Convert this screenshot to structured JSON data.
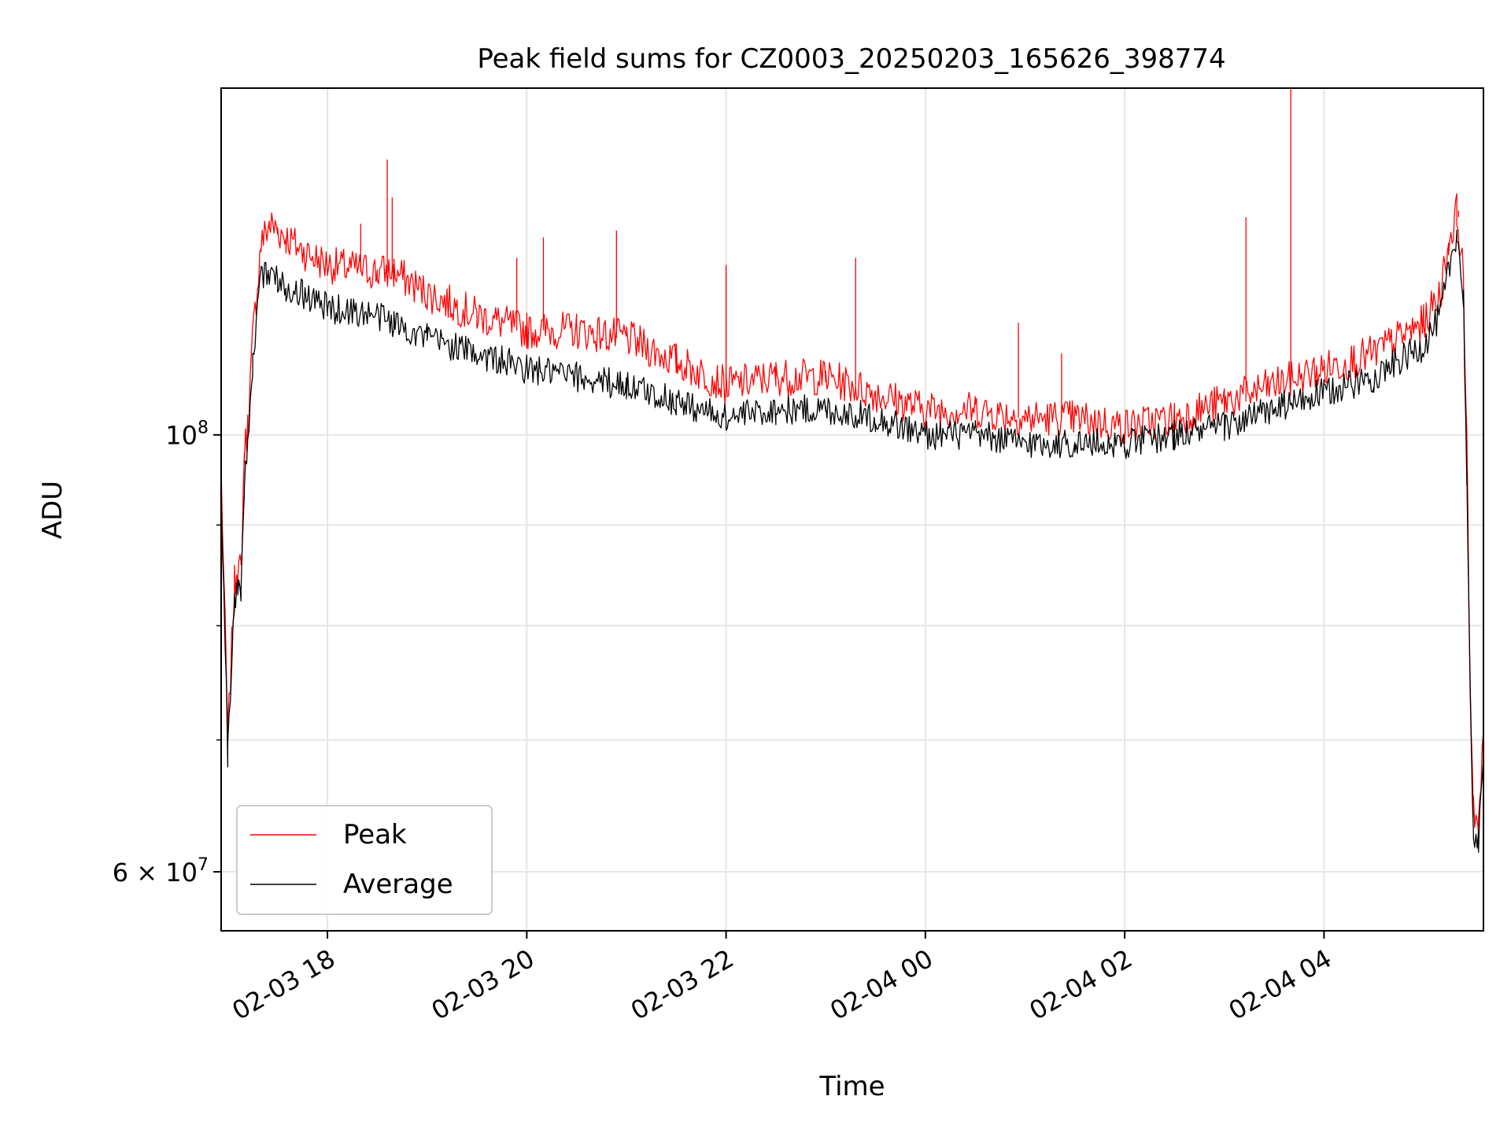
{
  "chart_data": {
    "type": "line",
    "title": "Peak field sums for CZ0003_20250203_165626_398774",
    "xlabel": "Time",
    "ylabel": "ADU",
    "x_type": "time",
    "xlim": [
      "2025-02-03 16:56",
      "2025-02-04 05:36"
    ],
    "ylim": [
      56000000,
      150000000
    ],
    "yscale": "log",
    "grid": true,
    "legend_position": "lower-left",
    "x_ticks": [
      "02-03 18",
      "02-03 20",
      "02-03 22",
      "02-04 00",
      "02-04 02",
      "02-04 04"
    ],
    "x_tick_times": [
      "2025-02-03 18:00",
      "2025-02-03 20:00",
      "2025-02-03 22:00",
      "2025-02-04 00:00",
      "2025-02-04 02:00",
      "2025-02-04 04:00"
    ],
    "y_ticks": [
      {
        "value": 100000000,
        "base": "10",
        "exp": "8",
        "mult": ""
      },
      {
        "value": 60000000,
        "base": "10",
        "exp": "7",
        "mult": "6 × "
      }
    ],
    "y_minor_ticks": [
      70000000,
      80000000,
      90000000
    ],
    "series": [
      {
        "name": "Peak",
        "color": "#ff0000",
        "x": [
          "2025-02-03 16:56",
          "2025-02-03 17:00",
          "2025-02-03 17:04",
          "2025-02-03 17:06",
          "2025-02-03 17:08",
          "2025-02-03 17:10",
          "2025-02-03 17:12",
          "2025-02-03 17:15",
          "2025-02-03 17:20",
          "2025-02-03 17:25",
          "2025-02-03 17:30",
          "2025-02-03 17:35",
          "2025-02-03 17:45",
          "2025-02-03 18:00",
          "2025-02-03 18:30",
          "2025-02-03 18:40",
          "2025-02-03 19:00",
          "2025-02-03 19:30",
          "2025-02-03 20:00",
          "2025-02-03 20:30",
          "2025-02-03 21:00",
          "2025-02-03 21:30",
          "2025-02-03 22:00",
          "2025-02-03 22:30",
          "2025-02-03 23:00",
          "2025-02-03 23:30",
          "2025-02-04 00:00",
          "2025-02-04 00:30",
          "2025-02-04 01:00",
          "2025-02-04 01:30",
          "2025-02-04 02:00",
          "2025-02-04 02:30",
          "2025-02-04 03:00",
          "2025-02-04 03:30",
          "2025-02-04 04:00",
          "2025-02-04 04:30",
          "2025-02-04 05:00",
          "2025-02-04 05:10",
          "2025-02-04 05:15",
          "2025-02-04 05:20",
          "2025-02-04 05:24",
          "2025-02-04 05:26",
          "2025-02-04 05:28",
          "2025-02-04 05:30",
          "2025-02-04 05:33",
          "2025-02-04 05:36"
        ],
        "y": [
          96000000,
          70000000,
          84000000,
          86000000,
          85000000,
          98000000,
          101000000,
          112000000,
          125000000,
          128000000,
          127000000,
          126000000,
          124000000,
          122000000,
          121000000,
          121000000,
          118000000,
          115000000,
          113000000,
          113000000,
          112000000,
          109000000,
          106000000,
          107000000,
          107000000,
          105000000,
          103000000,
          103000000,
          102000000,
          102000000,
          101000000,
          102000000,
          104000000,
          106000000,
          108000000,
          110000000,
          114000000,
          118000000,
          125000000,
          130000000,
          120000000,
          98000000,
          75000000,
          65000000,
          63000000,
          70000000
        ],
        "spikes": [
          {
            "x": "2025-02-03 18:36",
            "y": 138000000
          },
          {
            "x": "2025-02-03 18:39",
            "y": 132000000
          },
          {
            "x": "2025-02-03 18:20",
            "y": 128000000
          },
          {
            "x": "2025-02-03 19:54",
            "y": 123000000
          },
          {
            "x": "2025-02-03 20:10",
            "y": 126000000
          },
          {
            "x": "2025-02-03 20:54",
            "y": 127000000
          },
          {
            "x": "2025-02-03 22:00",
            "y": 122000000
          },
          {
            "x": "2025-02-03 23:18",
            "y": 123000000
          },
          {
            "x": "2025-02-04 00:56",
            "y": 114000000
          },
          {
            "x": "2025-02-04 01:22",
            "y": 110000000
          },
          {
            "x": "2025-02-04 03:13",
            "y": 129000000
          },
          {
            "x": "2025-02-04 03:40",
            "y": 150000000
          },
          {
            "x": "2025-02-04 05:21",
            "y": 129000000
          }
        ]
      },
      {
        "name": "Average",
        "color": "#000000",
        "x": [
          "2025-02-03 16:56",
          "2025-02-03 17:00",
          "2025-02-03 17:04",
          "2025-02-03 17:06",
          "2025-02-03 17:08",
          "2025-02-03 17:10",
          "2025-02-03 17:12",
          "2025-02-03 17:15",
          "2025-02-03 17:20",
          "2025-02-03 17:25",
          "2025-02-03 17:30",
          "2025-02-03 17:35",
          "2025-02-03 17:45",
          "2025-02-03 18:00",
          "2025-02-03 18:30",
          "2025-02-03 18:40",
          "2025-02-03 19:00",
          "2025-02-03 19:30",
          "2025-02-03 20:00",
          "2025-02-03 20:30",
          "2025-02-03 21:00",
          "2025-02-03 21:30",
          "2025-02-03 22:00",
          "2025-02-03 22:30",
          "2025-02-03 23:00",
          "2025-02-03 23:30",
          "2025-02-04 00:00",
          "2025-02-04 00:30",
          "2025-02-04 01:00",
          "2025-02-04 01:30",
          "2025-02-04 02:00",
          "2025-02-04 02:30",
          "2025-02-04 03:00",
          "2025-02-04 03:30",
          "2025-02-04 04:00",
          "2025-02-04 04:30",
          "2025-02-04 05:00",
          "2025-02-04 05:10",
          "2025-02-04 05:15",
          "2025-02-04 05:20",
          "2025-02-04 05:24",
          "2025-02-04 05:26",
          "2025-02-04 05:28",
          "2025-02-04 05:30",
          "2025-02-04 05:33",
          "2025-02-04 05:36"
        ],
        "y": [
          94000000,
          69000000,
          82000000,
          84000000,
          83000000,
          95000000,
          98000000,
          109000000,
          120000000,
          121000000,
          120000000,
          119000000,
          118000000,
          116000000,
          115000000,
          114000000,
          112000000,
          110000000,
          108000000,
          107000000,
          106000000,
          104000000,
          102000000,
          103000000,
          103000000,
          102000000,
          100000000,
          100000000,
          99000000,
          99000000,
          99000000,
          100000000,
          101000000,
          103000000,
          105000000,
          107000000,
          111000000,
          115000000,
          121000000,
          127000000,
          117000000,
          95000000,
          73000000,
          63000000,
          62000000,
          68000000
        ]
      }
    ]
  }
}
